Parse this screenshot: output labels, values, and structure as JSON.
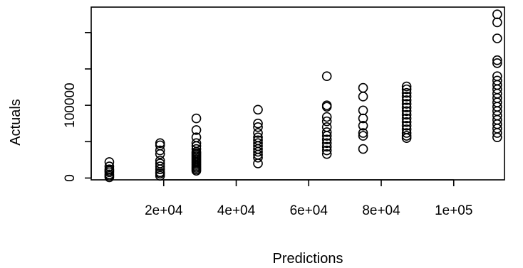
{
  "chart_data": {
    "type": "scatter",
    "title": "",
    "xlabel": "Predictions",
    "ylabel": "Actuals",
    "xlim": [
      0,
      114000
    ],
    "ylim": [
      -2500,
      235000
    ],
    "x_ticks": [
      20000,
      40000,
      60000,
      80000,
      100000
    ],
    "x_tick_labels": [
      "2e+04",
      "4e+04",
      "6e+04",
      "8e+04",
      "1e+05"
    ],
    "y_ticks": [
      0,
      50000,
      100000,
      150000,
      200000
    ],
    "y_tick_labels": [
      "0",
      "",
      "100000",
      "",
      ""
    ],
    "grid": false,
    "legend": "none",
    "marker": "open-circle",
    "series": [
      {
        "points": [
          [
            5000,
            5000
          ],
          [
            5000,
            1000
          ],
          [
            5000,
            8000
          ],
          [
            5000,
            12000
          ],
          [
            5000,
            16000
          ],
          [
            5000,
            22000
          ],
          [
            5000,
            3000
          ],
          [
            5000,
            10000
          ],
          [
            19000,
            3000
          ],
          [
            19000,
            8000
          ],
          [
            19000,
            12000
          ],
          [
            19000,
            16000
          ],
          [
            19000,
            20000
          ],
          [
            19000,
            33000
          ],
          [
            19000,
            38000
          ],
          [
            19000,
            45000
          ],
          [
            19000,
            48000
          ],
          [
            19000,
            24000
          ],
          [
            19000,
            6000
          ],
          [
            29000,
            10000
          ],
          [
            29000,
            12000
          ],
          [
            29000,
            14000
          ],
          [
            29000,
            16000
          ],
          [
            29000,
            18000
          ],
          [
            29000,
            20000
          ],
          [
            29000,
            22000
          ],
          [
            29000,
            24000
          ],
          [
            29000,
            26000
          ],
          [
            29000,
            28000
          ],
          [
            29000,
            30000
          ],
          [
            29000,
            32000
          ],
          [
            29000,
            34000
          ],
          [
            29000,
            36000
          ],
          [
            29000,
            40000
          ],
          [
            29000,
            44000
          ],
          [
            29000,
            48000
          ],
          [
            29000,
            56000
          ],
          [
            29000,
            66000
          ],
          [
            29000,
            82000
          ],
          [
            46000,
            20000
          ],
          [
            46000,
            28000
          ],
          [
            46000,
            32000
          ],
          [
            46000,
            36000
          ],
          [
            46000,
            40000
          ],
          [
            46000,
            44000
          ],
          [
            46000,
            48000
          ],
          [
            46000,
            52000
          ],
          [
            46000,
            56000
          ],
          [
            46000,
            62000
          ],
          [
            46000,
            70000
          ],
          [
            46000,
            75000
          ],
          [
            46000,
            94000
          ],
          [
            65000,
            33000
          ],
          [
            65000,
            38000
          ],
          [
            65000,
            43000
          ],
          [
            65000,
            48000
          ],
          [
            65000,
            53000
          ],
          [
            65000,
            58000
          ],
          [
            65000,
            63000
          ],
          [
            65000,
            70000
          ],
          [
            65000,
            78000
          ],
          [
            65000,
            84000
          ],
          [
            65000,
            98000
          ],
          [
            65000,
            100000
          ],
          [
            65000,
            140000
          ],
          [
            75000,
            40000
          ],
          [
            75000,
            58000
          ],
          [
            75000,
            62000
          ],
          [
            75000,
            72000
          ],
          [
            75000,
            82000
          ],
          [
            75000,
            93000
          ],
          [
            75000,
            112000
          ],
          [
            75000,
            124000
          ],
          [
            87000,
            55000
          ],
          [
            87000,
            58000
          ],
          [
            87000,
            62000
          ],
          [
            87000,
            67000
          ],
          [
            87000,
            72000
          ],
          [
            87000,
            77000
          ],
          [
            87000,
            82000
          ],
          [
            87000,
            87000
          ],
          [
            87000,
            92000
          ],
          [
            87000,
            97000
          ],
          [
            87000,
            102000
          ],
          [
            87000,
            107000
          ],
          [
            87000,
            112000
          ],
          [
            87000,
            117000
          ],
          [
            87000,
            122000
          ],
          [
            87000,
            126000
          ],
          [
            112000,
            56000
          ],
          [
            112000,
            62000
          ],
          [
            112000,
            68000
          ],
          [
            112000,
            74000
          ],
          [
            112000,
            80000
          ],
          [
            112000,
            86000
          ],
          [
            112000,
            92000
          ],
          [
            112000,
            98000
          ],
          [
            112000,
            104000
          ],
          [
            112000,
            110000
          ],
          [
            112000,
            116000
          ],
          [
            112000,
            122000
          ],
          [
            112000,
            128000
          ],
          [
            112000,
            134000
          ],
          [
            112000,
            140000
          ],
          [
            112000,
            158000
          ],
          [
            112000,
            162000
          ],
          [
            112000,
            192000
          ],
          [
            112000,
            214000
          ],
          [
            112000,
            225000
          ]
        ]
      }
    ]
  }
}
